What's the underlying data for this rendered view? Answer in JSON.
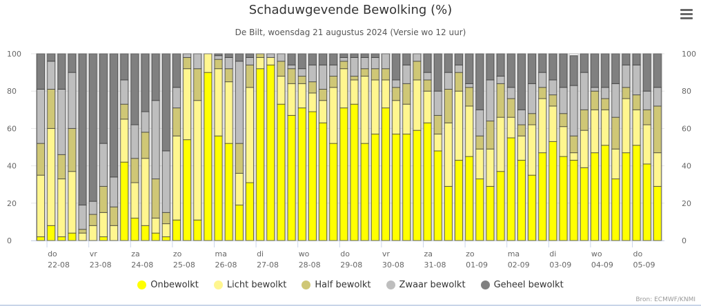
{
  "header": {
    "title": "Schaduwgevende Bewolking (%)",
    "subtitle": "De Bilt, woensdag 21 augustus 2024 (Versie wo 12 uur)"
  },
  "menu": {
    "icon": "hamburger-menu-icon"
  },
  "credits": "Bron: ECMWF/KNMI",
  "chart_data": {
    "type": "bar",
    "stacked": true,
    "title": "Schaduwgevende Bewolking (%)",
    "subtitle": "De Bilt, woensdag 21 augustus 2024 (Versie wo 12 uur)",
    "xlabel": "",
    "ylabel": "",
    "ylim": [
      0,
      100
    ],
    "yticks": [
      0,
      20,
      40,
      60,
      80,
      100
    ],
    "y_axis_both_sides": true,
    "grid": true,
    "legend_position": "bottom-center",
    "bars_per_day": 4,
    "x_tick_labels": [
      {
        "day": "do",
        "date": "22-08"
      },
      {
        "day": "vr",
        "date": "23-08"
      },
      {
        "day": "za",
        "date": "24-08"
      },
      {
        "day": "zo",
        "date": "25-08"
      },
      {
        "day": "ma",
        "date": "26-08"
      },
      {
        "day": "di",
        "date": "27-08"
      },
      {
        "day": "wo",
        "date": "28-08"
      },
      {
        "day": "do",
        "date": "29-08"
      },
      {
        "day": "vr",
        "date": "30-08"
      },
      {
        "day": "za",
        "date": "31-08"
      },
      {
        "day": "zo",
        "date": "01-09"
      },
      {
        "day": "ma",
        "date": "02-09"
      },
      {
        "day": "di",
        "date": "03-09"
      },
      {
        "day": "wo",
        "date": "04-09"
      },
      {
        "day": "do",
        "date": "05-09"
      }
    ],
    "series": [
      {
        "name": "Onbewolkt",
        "color": "#ffff00",
        "values": [
          2,
          8,
          2,
          4,
          0,
          0,
          2,
          0,
          42,
          12,
          8,
          4,
          2,
          11,
          54,
          11,
          90,
          56,
          52,
          19,
          31,
          92,
          94,
          73,
          67,
          71,
          69,
          63,
          52,
          71,
          73,
          52,
          57,
          71,
          57,
          57,
          59,
          63,
          48,
          29,
          43,
          45,
          33,
          29,
          37,
          55,
          43,
          35,
          47,
          53,
          45,
          43,
          39,
          47,
          51,
          33,
          47,
          51,
          41,
          29
        ]
      },
      {
        "name": "Licht bewolkt",
        "color": "#fff68f",
        "values": [
          33,
          52,
          31,
          33,
          4,
          8,
          13,
          8,
          23,
          19,
          36,
          8,
          7,
          45,
          38,
          64,
          10,
          36,
          33,
          17,
          51,
          6,
          4,
          15,
          17,
          13,
          10,
          12,
          30,
          21,
          13,
          36,
          29,
          15,
          18,
          16,
          27,
          17,
          9,
          34,
          37,
          27,
          16,
          20,
          29,
          11,
          13,
          27,
          29,
          19,
          16,
          4,
          20,
          23,
          19,
          16,
          29,
          19,
          21,
          18
        ]
      },
      {
        "name": "Half bewolkt",
        "color": "#cfc776",
        "values": [
          17,
          21,
          13,
          23,
          2,
          6,
          14,
          10,
          8,
          13,
          14,
          21,
          6,
          15,
          6,
          17,
          0,
          5,
          7,
          16,
          12,
          2,
          0,
          8,
          8,
          4,
          6,
          6,
          6,
          4,
          2,
          4,
          6,
          6,
          7,
          11,
          10,
          6,
          10,
          18,
          10,
          10,
          7,
          15,
          18,
          10,
          6,
          6,
          6,
          6,
          7,
          9,
          11,
          10,
          6,
          17,
          6,
          8,
          8,
          25
        ]
      },
      {
        "name": "Zwaar bewolkt",
        "color": "#bebebe",
        "values": [
          29,
          15,
          35,
          30,
          13,
          7,
          23,
          16,
          13,
          18,
          11,
          42,
          33,
          11,
          2,
          8,
          0,
          2,
          6,
          44,
          4,
          0,
          2,
          4,
          2,
          4,
          9,
          13,
          6,
          2,
          10,
          6,
          6,
          8,
          4,
          10,
          4,
          4,
          13,
          9,
          4,
          2,
          14,
          22,
          4,
          6,
          8,
          16,
          8,
          8,
          14,
          27,
          20,
          2,
          6,
          18,
          12,
          16,
          10,
          10
        ]
      },
      {
        "name": "Geheel bewolkt",
        "color": "#808080",
        "values": [
          19,
          4,
          19,
          10,
          81,
          79,
          48,
          66,
          14,
          38,
          31,
          25,
          52,
          18,
          0,
          0,
          0,
          1,
          2,
          4,
          2,
          0,
          0,
          0,
          6,
          8,
          6,
          6,
          6,
          2,
          2,
          2,
          2,
          0,
          14,
          6,
          0,
          10,
          20,
          10,
          6,
          16,
          30,
          14,
          12,
          18,
          30,
          16,
          10,
          14,
          18,
          16,
          10,
          18,
          18,
          16,
          6,
          6,
          20,
          18
        ]
      }
    ]
  }
}
